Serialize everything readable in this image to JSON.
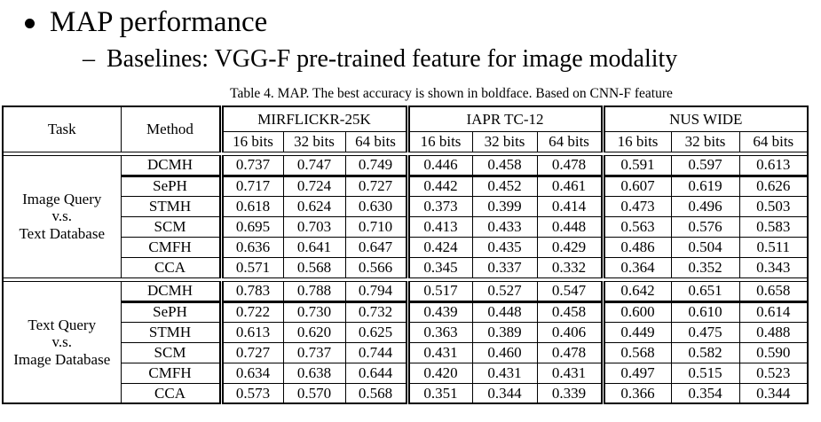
{
  "slide": {
    "bullet_glyph": "•",
    "title": "MAP performance",
    "dash_glyph": "–",
    "subtitle": "Baselines: VGG-F pre-trained feature for image modality"
  },
  "table": {
    "caption": "Table 4. MAP. The best accuracy is shown in boldface. Based on CNN-F feature",
    "task_header": "Task",
    "method_header": "Method",
    "groups": [
      "MIRFLICKR-25K",
      "IAPR TC-12",
      "NUS WIDE"
    ],
    "bit_labels": [
      "16 bits",
      "32 bits",
      "64 bits"
    ],
    "blocks": [
      {
        "task_lines": [
          "Image Query",
          "v.s.",
          "Text Database"
        ],
        "rows": [
          {
            "method": "DCMH",
            "heavy_rule_below": true,
            "values": [
              "0.737",
              "0.747",
              "0.749",
              "0.446",
              "0.458",
              "0.478",
              "0.591",
              "0.597",
              "0.613"
            ],
            "bold": [
              0,
              1,
              2,
              3,
              4,
              5
            ]
          },
          {
            "method": "SePH",
            "heavy_rule_below": false,
            "values": [
              "0.717",
              "0.724",
              "0.727",
              "0.442",
              "0.452",
              "0.461",
              "0.607",
              "0.619",
              "0.626"
            ],
            "bold": [
              6,
              7,
              8
            ]
          },
          {
            "method": "STMH",
            "heavy_rule_below": false,
            "values": [
              "0.618",
              "0.624",
              "0.630",
              "0.373",
              "0.399",
              "0.414",
              "0.473",
              "0.496",
              "0.503"
            ],
            "bold": []
          },
          {
            "method": "SCM",
            "heavy_rule_below": false,
            "values": [
              "0.695",
              "0.703",
              "0.710",
              "0.413",
              "0.433",
              "0.448",
              "0.563",
              "0.576",
              "0.583"
            ],
            "bold": []
          },
          {
            "method": "CMFH",
            "heavy_rule_below": false,
            "values": [
              "0.636",
              "0.641",
              "0.647",
              "0.424",
              "0.435",
              "0.429",
              "0.486",
              "0.504",
              "0.511"
            ],
            "bold": []
          },
          {
            "method": "CCA",
            "heavy_rule_below": false,
            "values": [
              "0.571",
              "0.568",
              "0.566",
              "0.345",
              "0.337",
              "0.332",
              "0.364",
              "0.352",
              "0.343"
            ],
            "bold": []
          }
        ]
      },
      {
        "task_lines": [
          "Text Query",
          "v.s.",
          "Image Database"
        ],
        "rows": [
          {
            "method": "DCMH",
            "heavy_rule_below": true,
            "values": [
              "0.783",
              "0.788",
              "0.794",
              "0.517",
              "0.527",
              "0.547",
              "0.642",
              "0.651",
              "0.658"
            ],
            "bold": [
              0,
              1,
              2,
              3,
              4,
              5,
              6,
              7,
              8
            ]
          },
          {
            "method": "SePH",
            "heavy_rule_below": false,
            "values": [
              "0.722",
              "0.730",
              "0.732",
              "0.439",
              "0.448",
              "0.458",
              "0.600",
              "0.610",
              "0.614"
            ],
            "bold": []
          },
          {
            "method": "STMH",
            "heavy_rule_below": false,
            "values": [
              "0.613",
              "0.620",
              "0.625",
              "0.363",
              "0.389",
              "0.406",
              "0.449",
              "0.475",
              "0.488"
            ],
            "bold": []
          },
          {
            "method": "SCM",
            "heavy_rule_below": false,
            "values": [
              "0.727",
              "0.737",
              "0.744",
              "0.431",
              "0.460",
              "0.478",
              "0.568",
              "0.582",
              "0.590"
            ],
            "bold": []
          },
          {
            "method": "CMFH",
            "heavy_rule_below": false,
            "values": [
              "0.634",
              "0.638",
              "0.644",
              "0.420",
              "0.431",
              "0.431",
              "0.497",
              "0.515",
              "0.523"
            ],
            "bold": []
          },
          {
            "method": "CCA",
            "heavy_rule_below": false,
            "values": [
              "0.573",
              "0.570",
              "0.568",
              "0.351",
              "0.344",
              "0.339",
              "0.366",
              "0.354",
              "0.344"
            ],
            "bold": []
          }
        ]
      }
    ]
  }
}
